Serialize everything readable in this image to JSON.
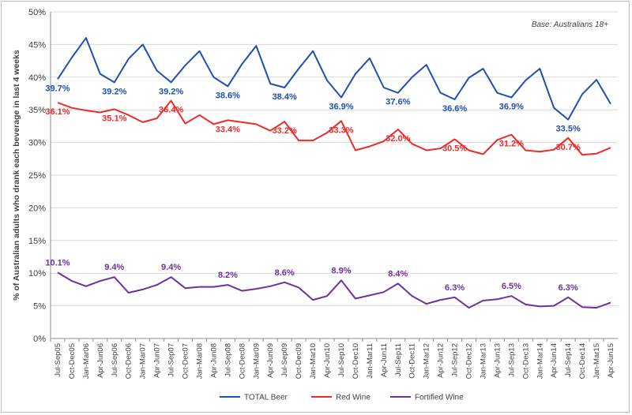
{
  "chart_data": {
    "type": "line",
    "annotation": "Base: Australians 18+",
    "ylabel": "% of Australian adults who drank each beverage in last 4 weeks",
    "ylim": [
      0,
      50
    ],
    "yticks": [
      "0%",
      "5%",
      "10%",
      "15%",
      "20%",
      "25%",
      "30%",
      "35%",
      "40%",
      "45%",
      "50%"
    ],
    "grid": "horizontal",
    "legend_position": "bottom",
    "categories": [
      "Jul-Sep05",
      "Oct-Dec05",
      "Jan-Mar06",
      "Apr-Jun06",
      "Jul-Sep06",
      "Oct-Dec06",
      "Jan-Mar07",
      "Apr-Jun07",
      "Jul-Sep07",
      "Oct-Dec07",
      "Jan-Mar08",
      "Apr-Jun08",
      "Jul-Sep08",
      "Oct-Dec08",
      "Jan-Mar09",
      "Apr-Jun09",
      "Jul-Sep09",
      "Oct-Dec09",
      "Jan-Mar10",
      "Apr-Jun10",
      "Jul-Sep10",
      "Oct-Dec10",
      "Jan-Mar11",
      "Apr-Jun11",
      "Jul-Sep11",
      "Oct-Dec11",
      "Jan-Mar12",
      "Apr-Jun12",
      "Jul-Sep12",
      "Oct-Dec12",
      "Jan-Mar13",
      "Apr-Jun13",
      "Jul-Sep13",
      "Oct-Dec13",
      "Jan-Mar14",
      "Apr-Jun14",
      "Jul-Sep14",
      "Oct-Dec14",
      "Jan-Mar15",
      "Apr-Jun15"
    ],
    "series": [
      {
        "name": "TOTAL Beer",
        "color": "#1f4faf",
        "values": [
          39.7,
          43.0,
          46.0,
          40.5,
          39.2,
          42.8,
          45.0,
          41.0,
          39.2,
          41.8,
          44.0,
          40.0,
          38.6,
          42.0,
          44.8,
          39.0,
          38.4,
          41.3,
          44.0,
          39.5,
          36.9,
          40.5,
          42.9,
          38.4,
          37.6,
          40.0,
          41.9,
          37.6,
          36.6,
          39.9,
          41.3,
          37.6,
          36.9,
          39.5,
          41.3,
          35.3,
          33.5,
          37.4,
          39.6,
          35.9
        ],
        "labels": [
          {
            "i": 0,
            "text": "39.7%"
          },
          {
            "i": 4,
            "text": "39.2%"
          },
          {
            "i": 8,
            "text": "39.2%"
          },
          {
            "i": 12,
            "text": "38.6%"
          },
          {
            "i": 16,
            "text": "38.4%"
          },
          {
            "i": 20,
            "text": "36.9%"
          },
          {
            "i": 24,
            "text": "37.6%"
          },
          {
            "i": 28,
            "text": "36.6%"
          },
          {
            "i": 32,
            "text": "36.9%"
          },
          {
            "i": 36,
            "text": "33.5%"
          }
        ]
      },
      {
        "name": "Red Wine",
        "color": "#ee2b2b",
        "values": [
          36.1,
          35.3,
          34.9,
          34.6,
          35.1,
          34.2,
          33.1,
          33.7,
          36.4,
          32.9,
          34.2,
          32.8,
          33.4,
          33.1,
          32.8,
          31.8,
          33.2,
          30.3,
          30.3,
          31.5,
          33.3,
          28.8,
          29.4,
          30.2,
          32.0,
          29.8,
          28.8,
          29.1,
          30.5,
          28.8,
          28.2,
          30.4,
          31.2,
          28.8,
          28.6,
          28.9,
          30.7,
          28.1,
          28.3,
          29.2
        ],
        "labels": [
          {
            "i": 0,
            "text": "36.1%"
          },
          {
            "i": 4,
            "text": "35.1%"
          },
          {
            "i": 8,
            "text": "36.4%"
          },
          {
            "i": 12,
            "text": "33.4%"
          },
          {
            "i": 16,
            "text": "33.2%"
          },
          {
            "i": 20,
            "text": "33.3%"
          },
          {
            "i": 24,
            "text": "32.0%"
          },
          {
            "i": 28,
            "text": "30.5%"
          },
          {
            "i": 32,
            "text": "31.2%"
          },
          {
            "i": 36,
            "text": "30.7%"
          }
        ]
      },
      {
        "name": "Fortified Wine",
        "color": "#7030a0",
        "values": [
          10.1,
          8.8,
          8.0,
          8.8,
          9.4,
          7.0,
          7.5,
          8.2,
          9.4,
          7.7,
          7.9,
          7.9,
          8.2,
          7.3,
          7.6,
          8.0,
          8.6,
          7.8,
          5.9,
          6.5,
          8.9,
          6.1,
          6.6,
          7.1,
          8.4,
          6.5,
          5.3,
          5.9,
          6.3,
          4.7,
          5.8,
          6.0,
          6.5,
          5.2,
          4.9,
          5.0,
          6.3,
          4.8,
          4.7,
          5.5
        ],
        "labels": [
          {
            "i": 0,
            "text": "10.1%"
          },
          {
            "i": 4,
            "text": "9.4%"
          },
          {
            "i": 8,
            "text": "9.4%"
          },
          {
            "i": 12,
            "text": "8.2%"
          },
          {
            "i": 16,
            "text": "8.6%"
          },
          {
            "i": 20,
            "text": "8.9%"
          },
          {
            "i": 24,
            "text": "8.4%"
          },
          {
            "i": 28,
            "text": "6.3%"
          },
          {
            "i": 32,
            "text": "6.5%"
          },
          {
            "i": 36,
            "text": "6.3%"
          }
        ]
      }
    ]
  }
}
